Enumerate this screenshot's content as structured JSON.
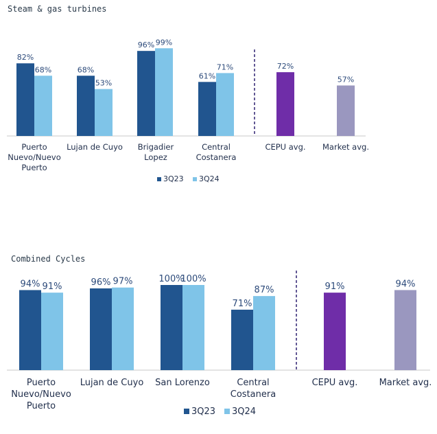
{
  "chart_data": [
    {
      "type": "bar",
      "title": "Steam & gas turbines",
      "categories": [
        "Puerto\nNuevo/Nuevo\nPuerto",
        "Lujan de Cuyo",
        "Brigadier\nLopez",
        "Central\nCostanera",
        "CEPU avg.",
        "Market avg."
      ],
      "series": [
        {
          "name": "3Q23",
          "color": "#21558f",
          "values": [
            82,
            68,
            96,
            61,
            null,
            null
          ]
        },
        {
          "name": "3Q24",
          "color": "#7fc4e8",
          "values": [
            68,
            53,
            99,
            71,
            null,
            null
          ]
        }
      ],
      "averages": [
        {
          "category": "CEPU avg.",
          "value": 72,
          "color": "#6f2da8"
        },
        {
          "category": "Market avg.",
          "value": 57,
          "color": "#9a97bf"
        }
      ],
      "value_suffix": "%",
      "ylim": [
        0,
        100
      ],
      "legend": [
        "3Q23",
        "3Q24"
      ],
      "divider": "dashed line between company plants and averages"
    },
    {
      "type": "bar",
      "title": "Combined Cycles",
      "categories": [
        "Puerto\nNuevo/Nuevo\nPuerto",
        "Lujan de Cuyo",
        "San Lorenzo",
        "Central\nCostanera",
        "CEPU avg.",
        "Market avg."
      ],
      "series": [
        {
          "name": "3Q23",
          "color": "#21558f",
          "values": [
            94,
            96,
            100,
            71,
            null,
            null
          ]
        },
        {
          "name": "3Q24",
          "color": "#7fc4e8",
          "values": [
            91,
            97,
            100,
            87,
            null,
            null
          ]
        }
      ],
      "averages": [
        {
          "category": "CEPU avg.",
          "value": 91,
          "color": "#6f2da8"
        },
        {
          "category": "Market avg.",
          "value": 94,
          "color": "#9a97bf"
        }
      ],
      "value_suffix": "%",
      "ylim": [
        0,
        100
      ],
      "legend": [
        "3Q23",
        "3Q24"
      ],
      "divider": "dashed line between company plants and averages"
    }
  ]
}
